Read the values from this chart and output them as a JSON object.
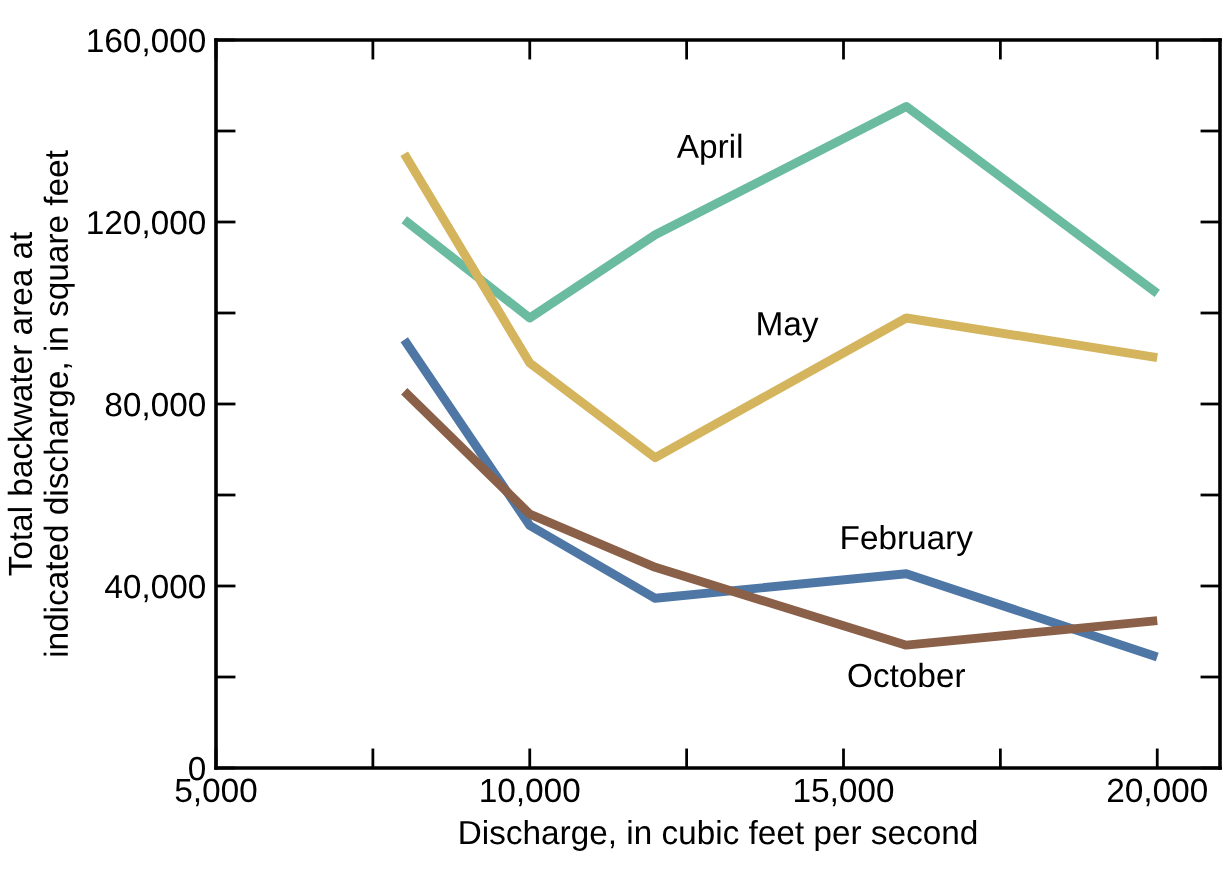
{
  "chart_data": {
    "type": "line",
    "xlabel": "Discharge, in cubic feet per second",
    "ylabel": "Total backwater area at\nindicated discharge, in square feet",
    "x": [
      8000,
      10000,
      12000,
      16000,
      20000
    ],
    "series": [
      {
        "name": "April",
        "color": "#6bbba0",
        "values": [
          120500,
          98900,
          117200,
          145400,
          104300
        ]
      },
      {
        "name": "May",
        "color": "#d4b45c",
        "values": [
          135000,
          89000,
          68200,
          98900,
          90200
        ]
      },
      {
        "name": "February",
        "color": "#4e77a6",
        "values": [
          94100,
          53300,
          37300,
          42700,
          24400
        ]
      },
      {
        "name": "October",
        "color": "#8b6048",
        "values": [
          82800,
          55800,
          44100,
          27000,
          32400
        ]
      }
    ],
    "xlim": [
      5000,
      21000
    ],
    "xticks": [
      {
        "value": 5000,
        "label": "5,000"
      },
      {
        "value": 7500,
        "label": null
      },
      {
        "value": 10000,
        "label": "10,000"
      },
      {
        "value": 12500,
        "label": null
      },
      {
        "value": 15000,
        "label": "15,000"
      },
      {
        "value": 17500,
        "label": null
      },
      {
        "value": 20000,
        "label": "20,000"
      }
    ],
    "ylim": [
      0,
      160000
    ],
    "yticks": [
      0,
      {
        "value": 20000,
        "label": null
      },
      {
        "value": 40000,
        "label": "40,000"
      },
      {
        "value": 60000,
        "label": null
      },
      {
        "value": 80000,
        "label": "80,000"
      },
      {
        "value": 100000,
        "label": null
      },
      {
        "value": 120000,
        "label": "120,000"
      },
      {
        "value": 140000,
        "label": null
      },
      {
        "value": 160000,
        "label": "160,000"
      }
    ],
    "grid": false,
    "legend": false,
    "marker": "none",
    "line_style": "solid"
  }
}
